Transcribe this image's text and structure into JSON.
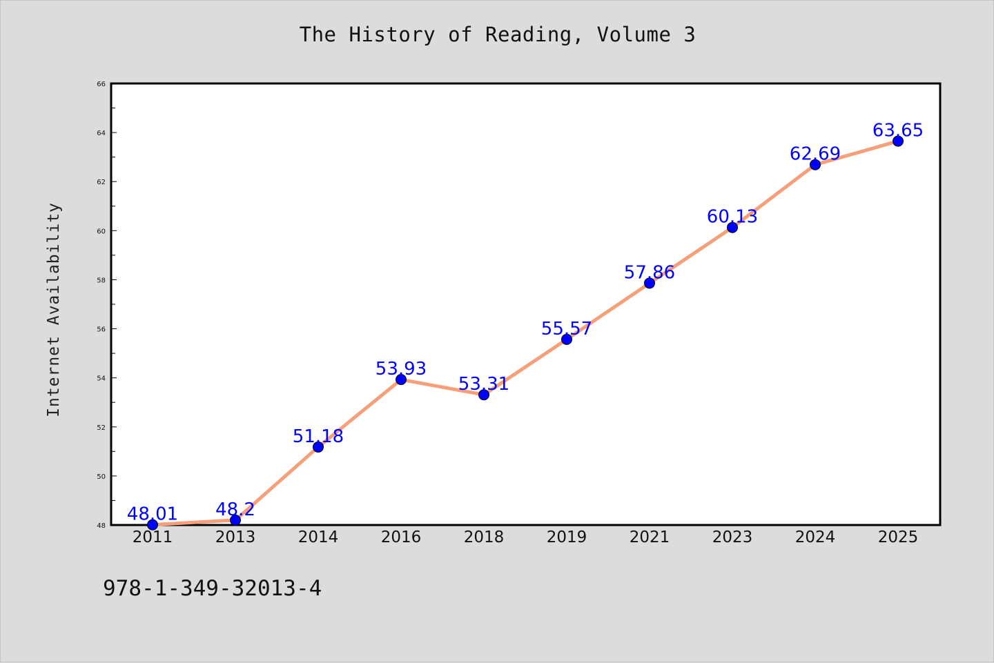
{
  "title": "The History of Reading, Volume 3",
  "isbn": "978-1-349-32013-4",
  "chart_data": {
    "type": "line",
    "title": "The History of Reading, Volume 3",
    "xlabel": "",
    "ylabel": "Internet Availability",
    "categories": [
      "2011",
      "2013",
      "2014",
      "2016",
      "2018",
      "2019",
      "2021",
      "2023",
      "2024",
      "2025"
    ],
    "values": [
      48.01,
      48.2,
      51.18,
      53.93,
      53.31,
      55.57,
      57.86,
      60.13,
      62.69,
      63.65
    ],
    "point_labels": [
      "48.01",
      "48.2",
      "51.18",
      "53.93",
      "53.31",
      "55.57",
      "57.86",
      "60.13",
      "62.69",
      "63.65"
    ],
    "ylim": [
      48,
      66
    ],
    "yticks": [
      48,
      50,
      52,
      54,
      56,
      58,
      60,
      62,
      64,
      66
    ],
    "grid": false,
    "line_color": "#f5a07a",
    "marker_color": "#0000ff",
    "label_color": "#0000ff"
  }
}
